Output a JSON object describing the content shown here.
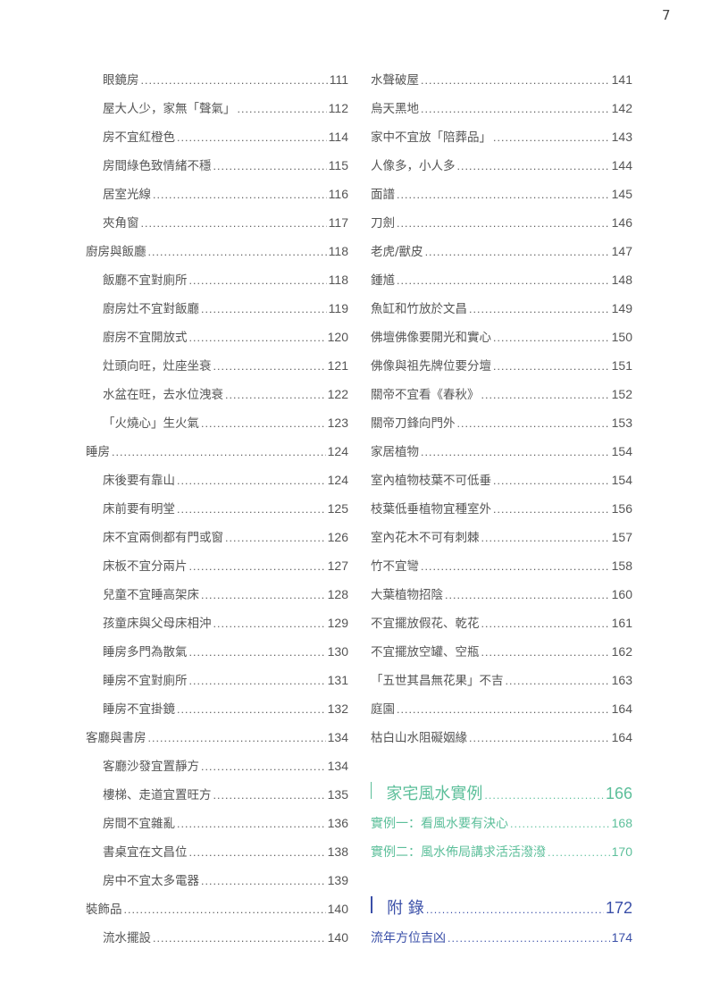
{
  "page_number": "7",
  "colors": {
    "section": "#e8708a",
    "case_section": "#5cbf9a",
    "appendix_section": "#3a4fa8",
    "text": "#555555"
  },
  "left_column": [
    {
      "type": "item",
      "label": "眼鏡房",
      "page": "111"
    },
    {
      "type": "item",
      "label": "屋大人少，家無「聲氣」",
      "page": "112"
    },
    {
      "type": "item",
      "label": "房不宜紅橙色",
      "page": "114"
    },
    {
      "type": "item",
      "label": "房間綠色致情緒不穩",
      "page": "115"
    },
    {
      "type": "item",
      "label": "居室光線",
      "page": "116"
    },
    {
      "type": "item",
      "label": "夾角窗",
      "page": "117"
    },
    {
      "type": "section",
      "label": "廚房與飯廳",
      "page": "118"
    },
    {
      "type": "item",
      "label": "飯廳不宜對廁所",
      "page": "118"
    },
    {
      "type": "item",
      "label": "廚房灶不宜對飯廳",
      "page": "119"
    },
    {
      "type": "item",
      "label": "廚房不宜開放式",
      "page": "120"
    },
    {
      "type": "item",
      "label": "灶頭向旺，灶座坐衰",
      "page": "121"
    },
    {
      "type": "item",
      "label": "水盆在旺，去水位洩衰",
      "page": "122"
    },
    {
      "type": "item",
      "label": "「火燒心」生火氣",
      "page": "123"
    },
    {
      "type": "section",
      "label": "睡房",
      "page": "124"
    },
    {
      "type": "item",
      "label": "床後要有靠山",
      "page": "124"
    },
    {
      "type": "item",
      "label": "床前要有明堂",
      "page": "125"
    },
    {
      "type": "item",
      "label": "床不宜兩側都有門或窗",
      "page": "126"
    },
    {
      "type": "item",
      "label": "床板不宜分兩片",
      "page": "127"
    },
    {
      "type": "item",
      "label": "兒童不宜睡高架床",
      "page": "128"
    },
    {
      "type": "item",
      "label": "孩童床與父母床相沖",
      "page": "129"
    },
    {
      "type": "item",
      "label": "睡房多門為散氣",
      "page": "130"
    },
    {
      "type": "item",
      "label": "睡房不宜對廁所",
      "page": "131"
    },
    {
      "type": "item",
      "label": "睡房不宜掛鏡",
      "page": "132"
    },
    {
      "type": "section",
      "label": "客廳與書房",
      "page": "134"
    },
    {
      "type": "item",
      "label": "客廳沙發宜置靜方",
      "page": "134"
    },
    {
      "type": "item",
      "label": "樓梯、走道宜置旺方",
      "page": "135"
    },
    {
      "type": "item",
      "label": "房間不宜雜亂",
      "page": "136"
    },
    {
      "type": "item",
      "label": "書桌宜在文昌位",
      "page": "138"
    },
    {
      "type": "item",
      "label": "房中不宜太多電器",
      "page": "139"
    },
    {
      "type": "section",
      "label": "裝飾品",
      "page": "140"
    },
    {
      "type": "item",
      "label": "流水擺設",
      "page": "140"
    }
  ],
  "right_column": [
    {
      "type": "item",
      "label": "水聲破屋",
      "page": "141"
    },
    {
      "type": "item",
      "label": "烏天黑地",
      "page": "142"
    },
    {
      "type": "item",
      "label": "家中不宜放「陪葬品」",
      "page": "143"
    },
    {
      "type": "item",
      "label": "人像多，小人多",
      "page": "144"
    },
    {
      "type": "item",
      "label": "面譜",
      "page": "145"
    },
    {
      "type": "item",
      "label": "刀劍",
      "page": "146"
    },
    {
      "type": "item",
      "label": "老虎/獸皮",
      "page": "147"
    },
    {
      "type": "item",
      "label": "鍾馗",
      "page": "148"
    },
    {
      "type": "item",
      "label": "魚缸和竹放於文昌",
      "page": "149"
    },
    {
      "type": "item",
      "label": "佛壇佛像要開光和實心",
      "page": "150"
    },
    {
      "type": "item",
      "label": "佛像與祖先牌位要分壇",
      "page": "151"
    },
    {
      "type": "item",
      "label": "關帝不宜看《春秋》",
      "page": "152"
    },
    {
      "type": "item",
      "label": "關帝刀鋒向門外",
      "page": "153"
    },
    {
      "type": "section",
      "label": "家居植物",
      "page": "154"
    },
    {
      "type": "item",
      "label": "室內植物枝葉不可低垂",
      "page": "154"
    },
    {
      "type": "item",
      "label": "枝葉低垂植物宜種室外",
      "page": "156"
    },
    {
      "type": "item",
      "label": "室內花木不可有刺棘",
      "page": "157"
    },
    {
      "type": "item",
      "label": "竹不宜彎",
      "page": "158"
    },
    {
      "type": "item",
      "label": "大葉植物招陰",
      "page": "160"
    },
    {
      "type": "item",
      "label": "不宜擺放假花、乾花",
      "page": "161"
    },
    {
      "type": "item",
      "label": "不宜擺放空罐、空瓶",
      "page": "162"
    },
    {
      "type": "item",
      "label": "「五世其昌無花果」不吉",
      "page": "163"
    },
    {
      "type": "section",
      "label": "庭園",
      "page": "164"
    },
    {
      "type": "item",
      "label": "枯白山水阻礙姻緣",
      "page": "164"
    },
    {
      "type": "gap"
    },
    {
      "type": "chapter",
      "color": "teal",
      "label": "家宅風水實例",
      "page": "166"
    },
    {
      "type": "sub",
      "color": "teal",
      "label": "實例一：看風水要有決心",
      "page": "168"
    },
    {
      "type": "sub",
      "color": "teal",
      "label": "實例二：風水佈局講求活活潑潑",
      "page": "170"
    },
    {
      "type": "gap"
    },
    {
      "type": "chapter",
      "color": "blue",
      "label": "附 錄",
      "page": "172"
    },
    {
      "type": "sub",
      "color": "blue",
      "label": "流年方位吉凶",
      "page": "174"
    }
  ]
}
